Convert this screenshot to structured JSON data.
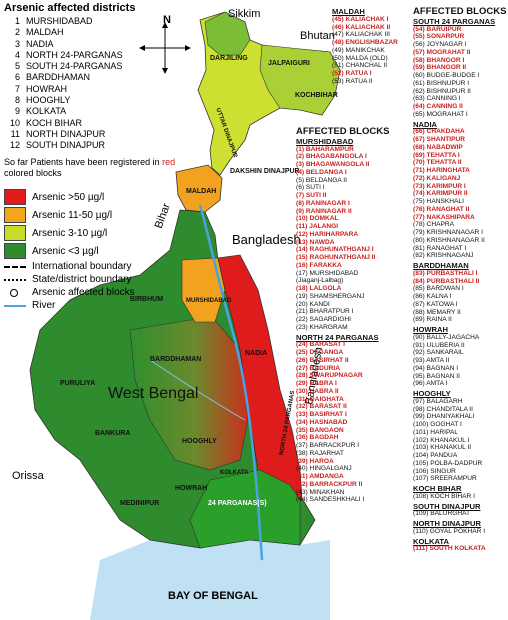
{
  "title": "Arsenic affected districts",
  "districts": [
    {
      "n": "1",
      "name": "MURSHIDABAD"
    },
    {
      "n": "2",
      "name": "MALDAH"
    },
    {
      "n": "3",
      "name": "NADIA"
    },
    {
      "n": "4",
      "name": "NORTH 24-PARGANAS"
    },
    {
      "n": "5",
      "name": "SOUTH 24-PARGANAS"
    },
    {
      "n": "6",
      "name": "BARDDHAMAN"
    },
    {
      "n": "7",
      "name": "HOWRAH"
    },
    {
      "n": "8",
      "name": "HOOGHLY"
    },
    {
      "n": "9",
      "name": "KOLKATA"
    },
    {
      "n": "10",
      "name": "KOCH BIHAR"
    },
    {
      "n": "11",
      "name": "NORTH DINAJPUR"
    },
    {
      "n": "12",
      "name": "SOUTH DINAJPUR"
    }
  ],
  "note": {
    "pre": "So far Patients have been registered in ",
    "red": "red",
    "post": " colored blocks"
  },
  "legend": {
    "levels": [
      {
        "label": "Arsenic >50 µg/l",
        "color": "#e01b1b"
      },
      {
        "label": "Arsenic 11-50 µg/l",
        "color": "#f3a51f"
      },
      {
        "label": "Arsenic 3-10 µg/l",
        "color": "#c8dc2a"
      },
      {
        "label": "Arsenic <3 µg/l",
        "color": "#2e8b2e"
      }
    ],
    "lines": [
      {
        "label": "International boundary"
      },
      {
        "label": "State/district boundary"
      },
      {
        "label": "Arsenic affected blocks"
      },
      {
        "label": "River"
      }
    ]
  },
  "map_labels": {
    "north": "N",
    "sikkim": "Sikkim",
    "bhutan": "Bhutan",
    "bihar": "Bihar",
    "bangladesh": "Bangladesh",
    "bangladesh2": "Bangladesh",
    "west_bengal": "West Bengal",
    "orissa": "Orissa",
    "bay": "BAY OF BENGAL",
    "darjiling": "DARJILING",
    "jalpaiguri": "JALPAIGURI",
    "kochbihar": "KOCHBIHAR",
    "uttar_dinajpur": "UTTAR DINAJPUR",
    "dakshin_dinajpur": "DAKSHIN DINAJPUR",
    "maldah": "MALDAH",
    "murshidabad": "MURSHIDABAD",
    "birbhum": "BIRBHUM",
    "barddhaman": "BARDDHAMAN",
    "nadia": "NADIA",
    "north24": "NORTH 24 PARGANAS",
    "purulia": "PURULIYA",
    "bankura": "BANKURA",
    "hooghly": "HOOGHLY",
    "howrah": "HOWRAH",
    "medinipur": "MEDINIPUR",
    "kolkata": "KOLKATA",
    "south24": "24 PARGANAS(S)"
  },
  "col_a": {
    "header": "MALDAH",
    "items": [
      {
        "t": "(45) KALIACHAK I",
        "r": true
      },
      {
        "t": "(46) KALIACHAK II",
        "r": true
      },
      {
        "t": "(47) KALIACHAK III",
        "r": false
      },
      {
        "t": "(48) ENGLISHBAZAR",
        "r": true
      },
      {
        "t": "(49) MANIKCHAK",
        "r": false
      },
      {
        "t": "(50) MALDA (OLD)",
        "r": false
      },
      {
        "t": "(51) CHANCHAL II",
        "r": false
      },
      {
        "t": "(52) RATUA I",
        "r": true
      },
      {
        "t": "(53) RATUA II",
        "r": false
      }
    ]
  },
  "col_b": {
    "title": "AFFECTED BLOCKS",
    "sections": [
      {
        "header": "MURSHIDABAD",
        "items": [
          {
            "t": "(1) BAHARAMPUR",
            "r": true
          },
          {
            "t": "(2) BHAGABANGOLA I",
            "r": true
          },
          {
            "t": "(3) BHAGAWANGOLA II",
            "r": true
          },
          {
            "t": "(4) BELDANGA I",
            "r": true
          },
          {
            "t": "(5) BELDANGA II",
            "r": false
          },
          {
            "t": "(6) SUTI I",
            "r": false
          },
          {
            "t": "(7) SUTI II",
            "r": true
          },
          {
            "t": "(8) RANINAGAR I",
            "r": true
          },
          {
            "t": "(9) RANINAGAR II",
            "r": true
          },
          {
            "t": "(10) DOMKAL",
            "r": true
          },
          {
            "t": "(11) JALANGI",
            "r": true
          },
          {
            "t": "(12) HARIHARPARA",
            "r": true
          },
          {
            "t": "(13) NAWDA",
            "r": true
          },
          {
            "t": "(14) RAGHUNATHGANJ I",
            "r": true
          },
          {
            "t": "(15) RAGHUNATHGANJ II",
            "r": true
          },
          {
            "t": "(16) FARAKKA",
            "r": true
          },
          {
            "t": "(17) MURSHIDABAD",
            "r": false
          },
          {
            "t": "(Jiaganj-Lalbag)",
            "r": false
          },
          {
            "t": "(18) LALGOLA",
            "r": true
          },
          {
            "t": "(19) SHAMSHERGANJ",
            "r": false
          },
          {
            "t": "(20) KANDI",
            "r": false
          },
          {
            "t": "(21) BHARATPUR I",
            "r": false
          },
          {
            "t": "(22) SAGARDIGHI",
            "r": false
          },
          {
            "t": "(23) KHARGRAM",
            "r": false
          }
        ]
      },
      {
        "header": "NORTH 24 PARGANAS",
        "items": [
          {
            "t": "(24) BARASAT I",
            "r": true
          },
          {
            "t": "(25) DEGANGA",
            "r": true
          },
          {
            "t": "(26) BASIRHAT II",
            "r": true
          },
          {
            "t": "(27) BADURIA",
            "r": true
          },
          {
            "t": "(28) SWARUPNAGAR",
            "r": true
          },
          {
            "t": "(29) HABRA I",
            "r": true
          },
          {
            "t": "(30) HABRA II",
            "r": true
          },
          {
            "t": "(31) GAIGHATA",
            "r": true
          },
          {
            "t": "(32) BARASAT II",
            "r": true
          },
          {
            "t": "(33) BASIRHAT I",
            "r": true
          },
          {
            "t": "(34) HASNABAD",
            "r": true
          },
          {
            "t": "(35) BANGAON",
            "r": true
          },
          {
            "t": "(36) BAGDAH",
            "r": true
          },
          {
            "t": "(37) BARRACKPUR I",
            "r": false
          },
          {
            "t": "(38) RAJARHAT",
            "r": false
          },
          {
            "t": "(39) HAROA",
            "r": true
          },
          {
            "t": "(40) HINGALGANJ",
            "r": false
          },
          {
            "t": "(41) AMDANGA",
            "r": true
          },
          {
            "t": "(42) BARRACKPUR II",
            "r": true
          },
          {
            "t": "(43) MINAKHAN",
            "r": false
          },
          {
            "t": "(44) SANDESHKHALI I",
            "r": false
          }
        ]
      }
    ]
  },
  "col_c": {
    "title": "AFFECTED BLOCKS",
    "sections": [
      {
        "header": "SOUTH 24 PARGANAS",
        "items": [
          {
            "t": "(54) BARUIPUR",
            "r": true
          },
          {
            "t": "(55) SONARPUR",
            "r": true
          },
          {
            "t": "(56) JOYNAGAR I",
            "r": false
          },
          {
            "t": "(57) MOGRAHAT II",
            "r": true
          },
          {
            "t": "(58) BHANGOR I",
            "r": true
          },
          {
            "t": "(59) BHANGOR II",
            "r": true
          },
          {
            "t": "(60) BUDGE-BUDGE I",
            "r": false
          },
          {
            "t": "(61) BISHNUPUR I",
            "r": false
          },
          {
            "t": "(62) BISHNUPUR II",
            "r": false
          },
          {
            "t": "(63) CANNING I",
            "r": false
          },
          {
            "t": "(64) CANNING II",
            "r": true
          },
          {
            "t": "(65) MOGRAHAT I",
            "r": false
          }
        ]
      },
      {
        "header": "NADIA",
        "items": [
          {
            "t": "(66) CHAKDAHA",
            "r": true
          },
          {
            "t": "(67) SHANTIPUR",
            "r": true
          },
          {
            "t": "(68) NABADWIP",
            "r": true
          },
          {
            "t": "(69) TEHATTA I",
            "r": true
          },
          {
            "t": "(70) TEHATTA II",
            "r": true
          },
          {
            "t": "(71) HARINGHATA",
            "r": true
          },
          {
            "t": "(72) KALIGANJ",
            "r": true
          },
          {
            "t": "(73) KARIMPUR I",
            "r": true
          },
          {
            "t": "(74) KARIMPUR II",
            "r": true
          },
          {
            "t": "(75) HANSKHALI",
            "r": false
          },
          {
            "t": "(76) RANAGHAT II",
            "r": true
          },
          {
            "t": "(77) NAKASHIPARA",
            "r": true
          },
          {
            "t": "(78) CHAPRA",
            "r": false
          },
          {
            "t": "(79) KRISHNANAGAR I",
            "r": false
          },
          {
            "t": "(80) KRISHNANAGAR II",
            "r": false
          },
          {
            "t": "(81) RANAGHAT I",
            "r": false
          },
          {
            "t": "(82) KRISHNAGANJ",
            "r": false
          }
        ]
      },
      {
        "header": "BARDDHAMAN",
        "items": [
          {
            "t": "(83) PURBASTHALI I",
            "r": true
          },
          {
            "t": "(84) PURBASTHALI II",
            "r": true
          },
          {
            "t": "(85) BARDWAN I",
            "r": false
          },
          {
            "t": "(86) KALNA I",
            "r": false
          },
          {
            "t": "(87) KATOWA I",
            "r": false
          },
          {
            "t": "(88) MEMARY II",
            "r": false
          },
          {
            "t": "(89) RAINA II",
            "r": false
          }
        ]
      },
      {
        "header": "HOWRAH",
        "items": [
          {
            "t": "(90) BALLY-JAGACHA",
            "r": false
          },
          {
            "t": "(91) ULUBERIA II",
            "r": false
          },
          {
            "t": "(92) SANKARAIL",
            "r": false
          },
          {
            "t": "(93) AMTA II",
            "r": false
          },
          {
            "t": "(94) BAGNAN I",
            "r": false
          },
          {
            "t": "(95) BAGNAN II",
            "r": false
          },
          {
            "t": "(96) AMTA I",
            "r": false
          }
        ]
      },
      {
        "header": "HOOGHLY",
        "items": [
          {
            "t": "(97) BALAGARH",
            "r": false
          },
          {
            "t": "(98) CHANDITALA II",
            "r": false
          },
          {
            "t": "(99) DHANIYAKHALI",
            "r": false
          },
          {
            "t": "(100) GOGHAT I",
            "r": false
          },
          {
            "t": "(101) HARIPAL",
            "r": false
          },
          {
            "t": "(102) KHANAKUL I",
            "r": false
          },
          {
            "t": "(103) KHANAKUL II",
            "r": false
          },
          {
            "t": "(104) PANDUA",
            "r": false
          },
          {
            "t": "(105) POLBA-DADPUR",
            "r": false
          },
          {
            "t": "(106) SINGUR",
            "r": false
          },
          {
            "t": "(107) SREERAMPUR",
            "r": false
          }
        ]
      },
      {
        "header": "KOCH BIHAR",
        "items": [
          {
            "t": "(108) KOCH BIHAR I",
            "r": false
          }
        ]
      },
      {
        "header": "SOUTH DINAJPUR",
        "items": [
          {
            "t": "(109) BALURGHAT",
            "r": false
          }
        ]
      },
      {
        "header": "NORTH DINAJPUR",
        "items": [
          {
            "t": "(110) GOYAL POKHAR I",
            "r": false
          }
        ]
      },
      {
        "header": "KOLKATA",
        "items": [
          {
            "t": "(111) SOUTH KOLKATA",
            "r": true
          }
        ]
      }
    ]
  }
}
